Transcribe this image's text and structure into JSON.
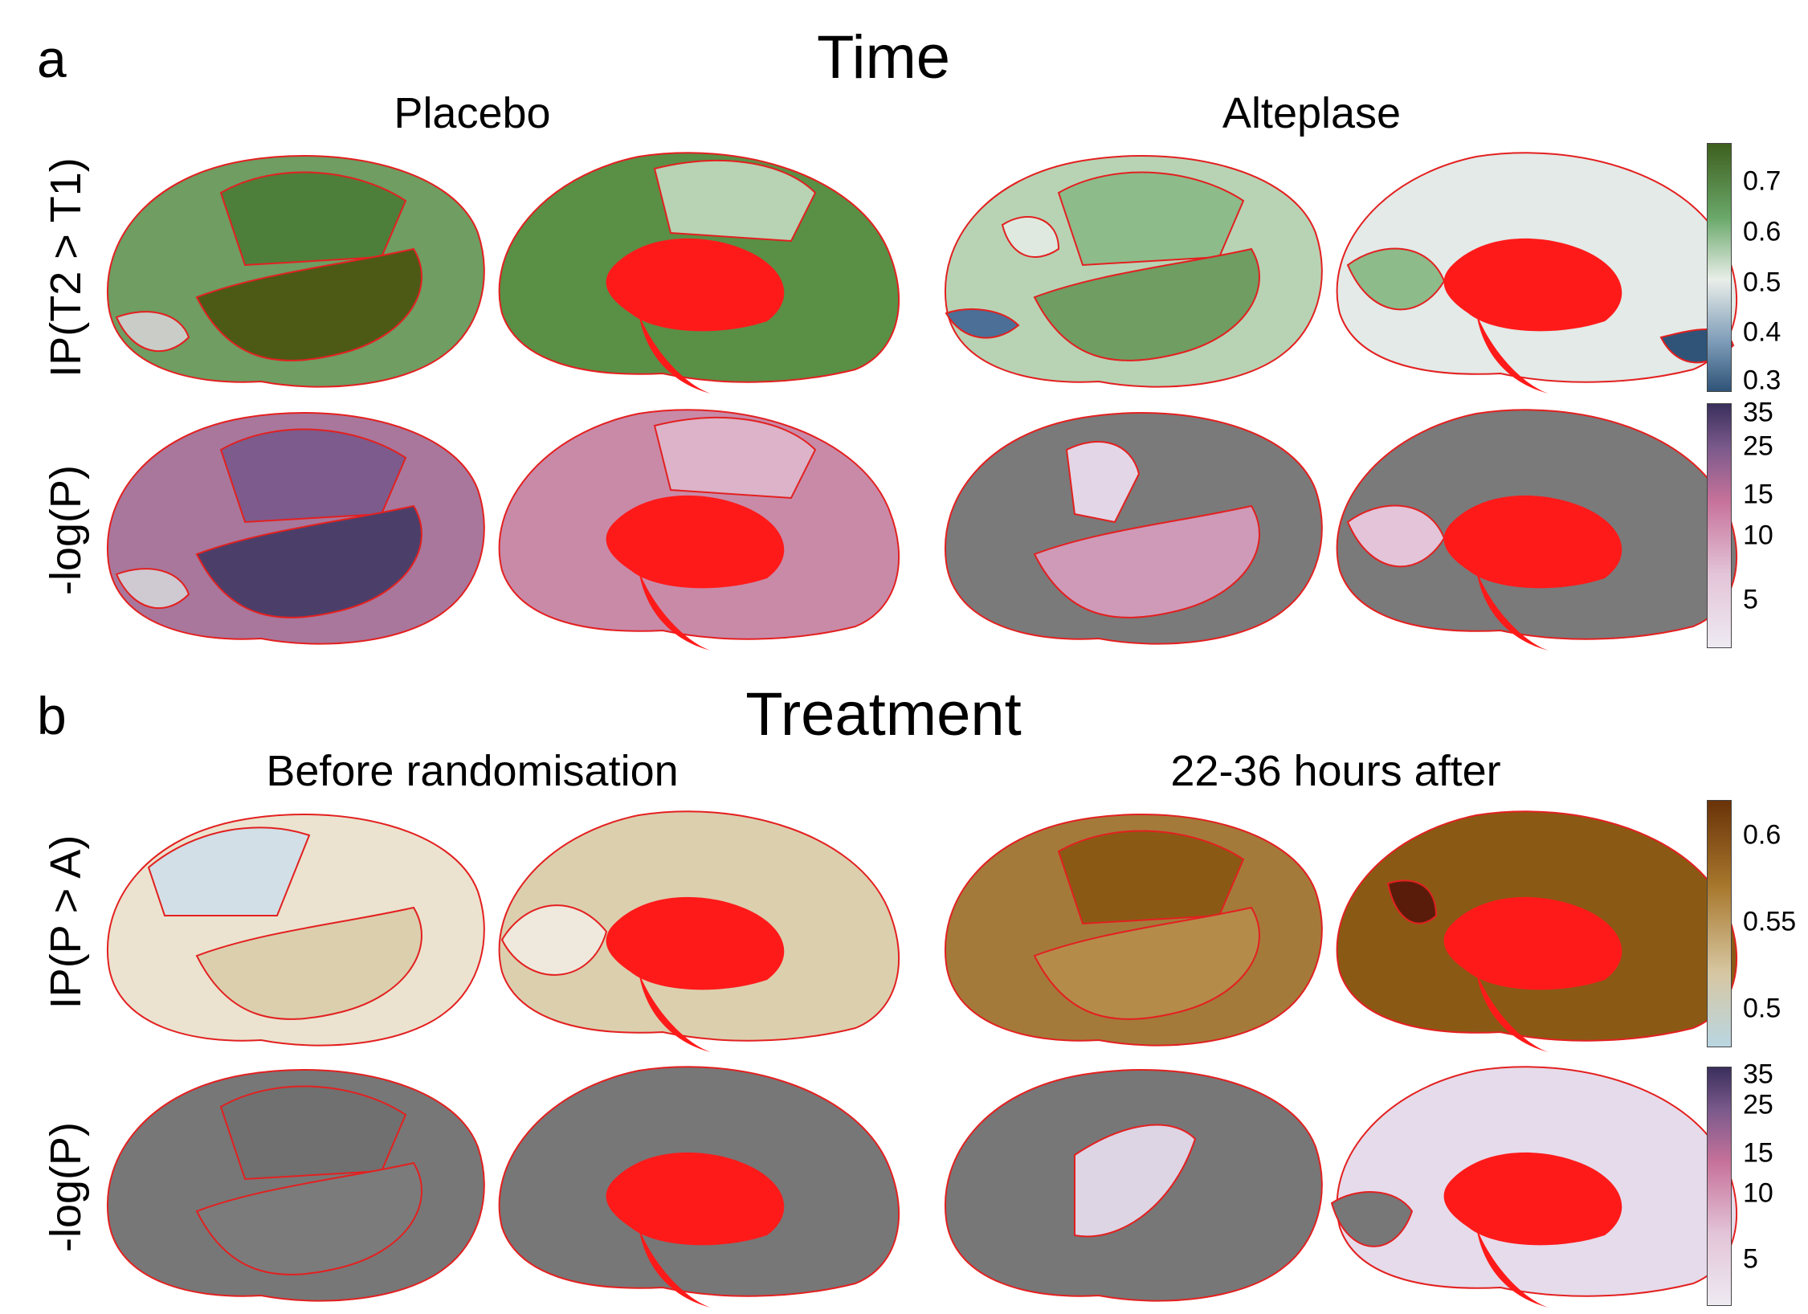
{
  "panel_a": {
    "letter": "a",
    "title": "Time",
    "columns": [
      "Placebo",
      "Alteplase"
    ],
    "rows": [
      "IP(T2 > T1)",
      "-log(P)"
    ],
    "colorbar_ip": {
      "ticks": [
        "0.7",
        "0.6",
        "0.5",
        "0.4",
        "0.3"
      ],
      "colors": [
        "#3e5f1e",
        "#6aa86a",
        "#e9eee9",
        "#7e9cb8",
        "#2f5478"
      ]
    },
    "colorbar_logp": {
      "ticks": [
        "35",
        "25",
        "15",
        "10",
        "5"
      ],
      "colors": [
        "#3a2f5c",
        "#7b5a8c",
        "#c7729a",
        "#e3c4d8",
        "#eeeaf2"
      ]
    }
  },
  "panel_b": {
    "letter": "b",
    "title": "Treatment",
    "columns": [
      "Before randomisation",
      "22-36 hours after"
    ],
    "rows": [
      "IP(P > A)",
      "-log(P)"
    ],
    "colorbar_ip": {
      "ticks": [
        "0.6",
        "0.55",
        "0.5"
      ],
      "colors": [
        "#6a3208",
        "#a8782d",
        "#d7c7a2",
        "#b9d6e2"
      ]
    },
    "colorbar_logp": {
      "ticks": [
        "35",
        "25",
        "15",
        "10",
        "5"
      ],
      "colors": [
        "#3a2f5c",
        "#7b5a8c",
        "#c7729a",
        "#e3c4d8",
        "#eeeaf2"
      ]
    }
  },
  "region_colors": {
    "a_placebo_ip": [
      "#4e7f3a",
      "#6f9d62",
      "#5a8f46"
    ],
    "a_alteplase_ip": [
      "#dfe9df",
      "#8dbb8a",
      "#c3d5ea"
    ],
    "a_placebo_logp": [
      "#7d5b8c",
      "#b07ca0",
      "#c98aa8"
    ],
    "a_alteplase_logp": [
      "#7a7a7a",
      "#d8c6da",
      "#cf9ab8"
    ],
    "b_before_ip": [
      "#e7eef2",
      "#dccfae",
      "#ebe3cf"
    ],
    "b_after_ip": [
      "#a47a3a",
      "#8a5a14",
      "#b58b4a"
    ],
    "b_before_logp": [
      "#777777",
      "#777777",
      "#777777"
    ],
    "b_after_logp": [
      "#777777",
      "#ddd4e4",
      "#e6dbea"
    ],
    "lesion": "#ff1a1a",
    "boundary": "#e32020"
  }
}
